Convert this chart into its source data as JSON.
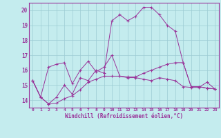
{
  "xlabel": "Windchill (Refroidissement éolien,°C)",
  "bg_color": "#c4ecee",
  "grid_color": "#9cccd4",
  "line_color": "#993399",
  "xlim": [
    -0.5,
    23.5
  ],
  "ylim": [
    13.5,
    20.5
  ],
  "xticks": [
    0,
    1,
    2,
    3,
    4,
    5,
    6,
    7,
    8,
    9,
    10,
    11,
    12,
    13,
    14,
    15,
    16,
    17,
    18,
    19,
    20,
    21,
    22,
    23
  ],
  "yticks": [
    14,
    15,
    16,
    17,
    18,
    19,
    20
  ],
  "line1_x": [
    0,
    1,
    2,
    3,
    4,
    5,
    6,
    7,
    8,
    9,
    10,
    11,
    12,
    13,
    14,
    15,
    16,
    17,
    18,
    19,
    20,
    21,
    22,
    23
  ],
  "line1_y": [
    15.3,
    14.2,
    16.2,
    16.4,
    16.5,
    15.1,
    16.0,
    16.6,
    15.9,
    16.2,
    17.0,
    15.6,
    15.5,
    15.5,
    15.4,
    15.3,
    15.5,
    15.4,
    15.3,
    14.9,
    14.85,
    14.85,
    15.2,
    14.75
  ],
  "line2_x": [
    0,
    1,
    2,
    3,
    4,
    5,
    6,
    7,
    8,
    9,
    10,
    11,
    12,
    13,
    14,
    15,
    16,
    17,
    18,
    19,
    20,
    21,
    22,
    23
  ],
  "line2_y": [
    15.3,
    14.2,
    13.75,
    14.2,
    15.0,
    14.4,
    15.5,
    15.3,
    16.0,
    15.8,
    19.3,
    19.7,
    19.3,
    19.6,
    20.2,
    20.2,
    19.7,
    19.0,
    18.6,
    16.5,
    14.9,
    14.9,
    14.8,
    14.75
  ],
  "line3_x": [
    0,
    1,
    2,
    3,
    4,
    5,
    6,
    7,
    8,
    9,
    10,
    11,
    12,
    13,
    14,
    15,
    16,
    17,
    18,
    19,
    20,
    21,
    22,
    23
  ],
  "line3_y": [
    15.3,
    14.2,
    13.75,
    13.8,
    14.1,
    14.3,
    14.7,
    15.2,
    15.4,
    15.6,
    15.6,
    15.6,
    15.55,
    15.55,
    15.8,
    16.0,
    16.2,
    16.4,
    16.5,
    16.5,
    14.9,
    14.9,
    14.8,
    14.75
  ]
}
